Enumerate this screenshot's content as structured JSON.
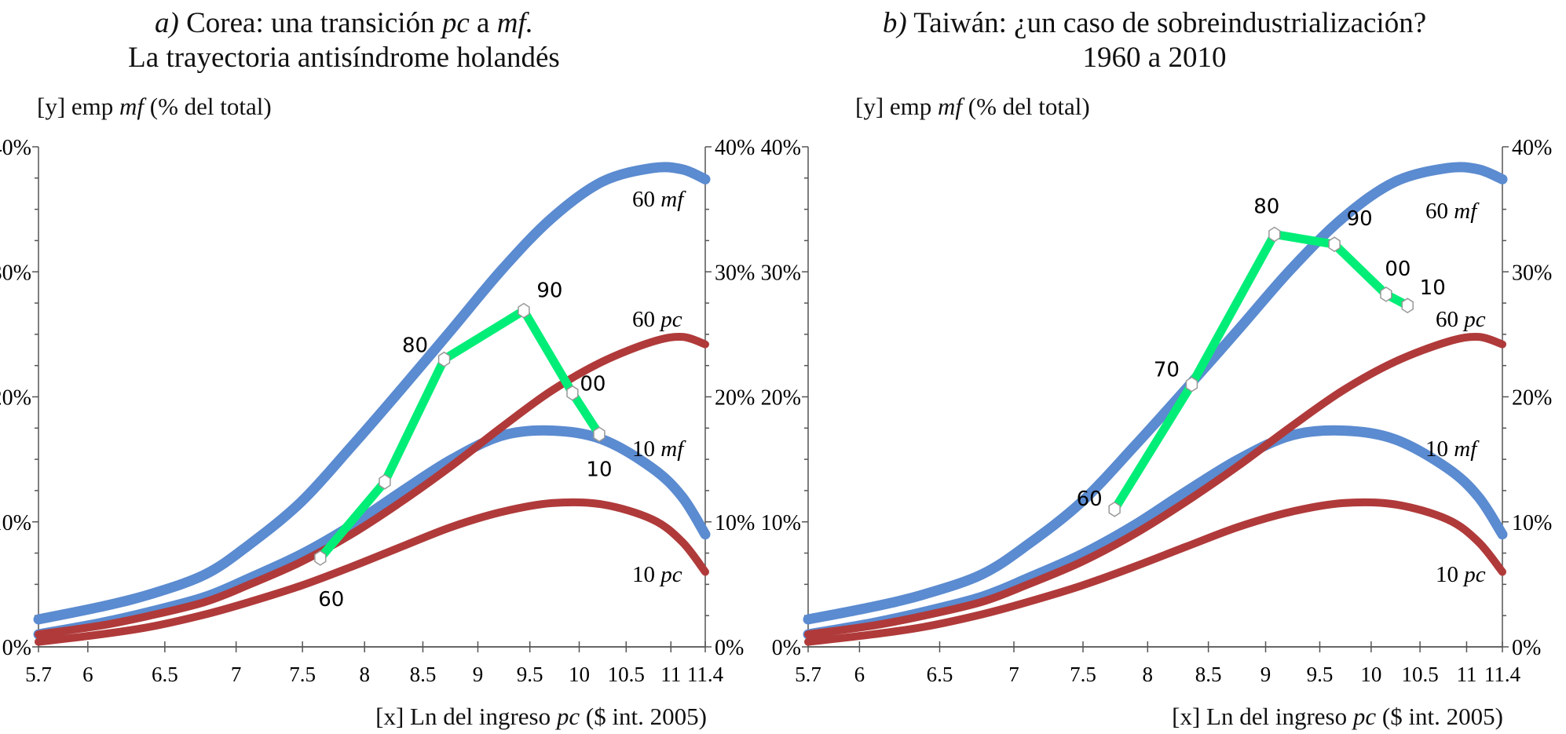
{
  "chart_data": [
    {
      "type": "line",
      "title_line1": {
        "prefix": "a)",
        "t1": " Corea: una transición ",
        "i1": "pc",
        "t2": " a ",
        "i2": "mf."
      },
      "title_line2": "La trayectoria antisíndrome holandés",
      "ylabel": {
        "pre": "[y] emp ",
        "it": "mf",
        "post": " (% del total)"
      },
      "xlabel": {
        "pre": "[x] Ln del ingreso ",
        "it": "pc",
        "post": " ($ int. 2005)"
      },
      "xscale": "log",
      "xlim": [
        5.7,
        11.4
      ],
      "ylim": [
        0,
        40
      ],
      "xticks": [
        "5.7",
        "6",
        "6.5",
        "7",
        "7.5",
        "8",
        "8.5",
        "9",
        "9.5",
        "10",
        "10.5",
        "11",
        "11.4"
      ],
      "yticks": [
        "0%",
        "10%",
        "20%",
        "30%",
        "40%"
      ],
      "curves": [
        {
          "num": "60",
          "unit": "mf",
          "color": "#5b8bd0",
          "points": [
            [
              5.7,
              2.2
            ],
            [
              6.08,
              3.2
            ],
            [
              6.4,
              4.2
            ],
            [
              6.78,
              5.8
            ],
            [
              7.1,
              8.2
            ],
            [
              7.49,
              11.6
            ],
            [
              7.89,
              16.0
            ],
            [
              8.31,
              20.6
            ],
            [
              8.76,
              25.4
            ],
            [
              9.23,
              30.2
            ],
            [
              9.72,
              34.3
            ],
            [
              10.24,
              37.2
            ],
            [
              10.79,
              38.3
            ],
            [
              11.13,
              38.2
            ],
            [
              11.4,
              37.4
            ]
          ]
        },
        {
          "num": "60",
          "unit": "pc",
          "color": "#b03a3a",
          "points": [
            [
              5.7,
              1.0
            ],
            [
              6.08,
              1.7
            ],
            [
              6.4,
              2.5
            ],
            [
              6.78,
              3.6
            ],
            [
              7.1,
              5.0
            ],
            [
              7.49,
              6.8
            ],
            [
              7.89,
              9.0
            ],
            [
              8.31,
              11.6
            ],
            [
              8.76,
              14.5
            ],
            [
              9.23,
              17.6
            ],
            [
              9.72,
              20.5
            ],
            [
              10.24,
              22.8
            ],
            [
              10.79,
              24.4
            ],
            [
              11.13,
              24.8
            ],
            [
              11.4,
              24.2
            ]
          ]
        },
        {
          "num": "10",
          "unit": "mf",
          "color": "#5b8bd0",
          "points": [
            [
              5.7,
              1.0
            ],
            [
              6.08,
              1.9
            ],
            [
              6.4,
              2.8
            ],
            [
              6.78,
              4.0
            ],
            [
              7.1,
              5.5
            ],
            [
              7.49,
              7.4
            ],
            [
              7.89,
              9.7
            ],
            [
              8.31,
              12.4
            ],
            [
              8.76,
              15.0
            ],
            [
              9.23,
              16.9
            ],
            [
              9.72,
              17.3
            ],
            [
              10.24,
              16.6
            ],
            [
              10.79,
              14.3
            ],
            [
              11.13,
              12.0
            ],
            [
              11.4,
              9.0
            ]
          ]
        },
        {
          "num": "10",
          "unit": "pc",
          "color": "#b03a3a",
          "points": [
            [
              5.7,
              0.4
            ],
            [
              6.08,
              1.0
            ],
            [
              6.4,
              1.6
            ],
            [
              6.78,
              2.6
            ],
            [
              7.1,
              3.6
            ],
            [
              7.49,
              4.9
            ],
            [
              7.89,
              6.4
            ],
            [
              8.31,
              8.0
            ],
            [
              8.76,
              9.6
            ],
            [
              9.23,
              10.8
            ],
            [
              9.72,
              11.5
            ],
            [
              10.24,
              11.4
            ],
            [
              10.79,
              10.2
            ],
            [
              11.13,
              8.4
            ],
            [
              11.4,
              6.0
            ]
          ]
        }
      ],
      "trajectory": {
        "color": "#00ee77",
        "points": [
          {
            "label": "60",
            "x": 7.64,
            "y": 7.1
          },
          {
            "label": "",
            "x": 8.17,
            "y": 13.2
          },
          {
            "label": "80",
            "x": 8.69,
            "y": 23.0
          },
          {
            "label": "90",
            "x": 9.44,
            "y": 26.9
          },
          {
            "label": "00",
            "x": 9.93,
            "y": 20.3
          },
          {
            "label": "10",
            "x": 10.21,
            "y": 17.0
          }
        ]
      }
    },
    {
      "type": "line",
      "title_line1": {
        "prefix": "b)",
        "t1": " Taiwán: ¿un caso de sobreindustrialización?",
        "i1": "",
        "t2": "",
        "i2": ""
      },
      "title_line2": "1960 a 2010",
      "ylabel": {
        "pre": "[y] emp ",
        "it": "mf",
        "post": " (% del total)"
      },
      "xlabel": {
        "pre": "[x] Ln del ingreso ",
        "it": "pc",
        "post": " ($ int. 2005)"
      },
      "xscale": "log",
      "xlim": [
        5.7,
        11.4
      ],
      "ylim": [
        0,
        40
      ],
      "xticks": [
        "5.7",
        "6",
        "6.5",
        "7",
        "7.5",
        "8",
        "8.5",
        "9",
        "9.5",
        "10",
        "10.5",
        "11",
        "11.4"
      ],
      "yticks": [
        "0%",
        "10%",
        "20%",
        "30%",
        "40%"
      ],
      "curves": [
        {
          "num": "60",
          "unit": "mf",
          "color": "#5b8bd0",
          "points": [
            [
              5.7,
              2.2
            ],
            [
              6.08,
              3.2
            ],
            [
              6.4,
              4.2
            ],
            [
              6.78,
              5.8
            ],
            [
              7.1,
              8.2
            ],
            [
              7.49,
              11.6
            ],
            [
              7.89,
              16.0
            ],
            [
              8.31,
              20.6
            ],
            [
              8.76,
              25.4
            ],
            [
              9.23,
              30.2
            ],
            [
              9.72,
              34.3
            ],
            [
              10.24,
              37.2
            ],
            [
              10.79,
              38.3
            ],
            [
              11.13,
              38.2
            ],
            [
              11.4,
              37.4
            ]
          ]
        },
        {
          "num": "60",
          "unit": "pc",
          "color": "#b03a3a",
          "points": [
            [
              5.7,
              1.0
            ],
            [
              6.08,
              1.7
            ],
            [
              6.4,
              2.5
            ],
            [
              6.78,
              3.6
            ],
            [
              7.1,
              5.0
            ],
            [
              7.49,
              6.8
            ],
            [
              7.89,
              9.0
            ],
            [
              8.31,
              11.6
            ],
            [
              8.76,
              14.5
            ],
            [
              9.23,
              17.6
            ],
            [
              9.72,
              20.5
            ],
            [
              10.24,
              22.8
            ],
            [
              10.79,
              24.4
            ],
            [
              11.13,
              24.8
            ],
            [
              11.4,
              24.2
            ]
          ]
        },
        {
          "num": "10",
          "unit": "mf",
          "color": "#5b8bd0",
          "points": [
            [
              5.7,
              1.0
            ],
            [
              6.08,
              1.9
            ],
            [
              6.4,
              2.8
            ],
            [
              6.78,
              4.0
            ],
            [
              7.1,
              5.5
            ],
            [
              7.49,
              7.4
            ],
            [
              7.89,
              9.7
            ],
            [
              8.31,
              12.4
            ],
            [
              8.76,
              15.0
            ],
            [
              9.23,
              16.9
            ],
            [
              9.72,
              17.3
            ],
            [
              10.24,
              16.6
            ],
            [
              10.79,
              14.3
            ],
            [
              11.13,
              12.0
            ],
            [
              11.4,
              9.0
            ]
          ]
        },
        {
          "num": "10",
          "unit": "pc",
          "color": "#b03a3a",
          "points": [
            [
              5.7,
              0.4
            ],
            [
              6.08,
              1.0
            ],
            [
              6.4,
              1.6
            ],
            [
              6.78,
              2.6
            ],
            [
              7.1,
              3.6
            ],
            [
              7.49,
              4.9
            ],
            [
              7.89,
              6.4
            ],
            [
              8.31,
              8.0
            ],
            [
              8.76,
              9.6
            ],
            [
              9.23,
              10.8
            ],
            [
              9.72,
              11.5
            ],
            [
              10.24,
              11.4
            ],
            [
              10.79,
              10.2
            ],
            [
              11.13,
              8.4
            ],
            [
              11.4,
              6.0
            ]
          ]
        }
      ],
      "trajectory": {
        "color": "#00ee77",
        "points": [
          {
            "label": "60",
            "x": 7.74,
            "y": 11.0
          },
          {
            "label": "70",
            "x": 8.36,
            "y": 21.0
          },
          {
            "label": "80",
            "x": 9.08,
            "y": 33.0
          },
          {
            "label": "90",
            "x": 9.64,
            "y": 32.2
          },
          {
            "label": "00",
            "x": 10.15,
            "y": 28.2
          },
          {
            "label": "10",
            "x": 10.37,
            "y": 27.3
          }
        ]
      }
    }
  ]
}
